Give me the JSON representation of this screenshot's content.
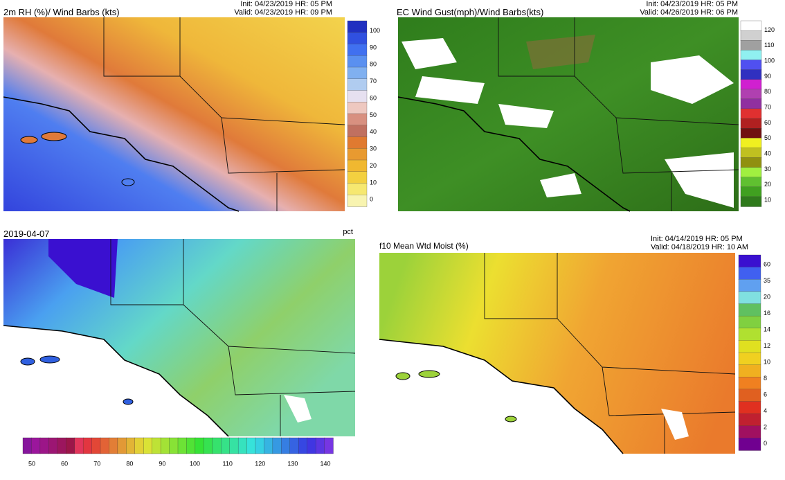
{
  "panels": [
    {
      "title": "2m RH (%)/ Wind Barbs (kts)",
      "init": "Init: 04/23/2019 HR: 05 PM",
      "valid": "Valid: 04/23/2019 HR: 09 PM",
      "colorbar_labels": [
        100,
        90,
        80,
        70,
        60,
        50,
        40,
        30,
        20,
        10,
        0
      ]
    },
    {
      "title": "EC Wind Gust(mph)/Wind Barbs(kts)",
      "init": "Init: 04/23/2019 HR: 05 PM",
      "valid": "Valid: 04/26/2019 HR: 06 PM",
      "colorbar_labels": [
        120,
        110,
        100,
        90,
        80,
        70,
        60,
        50,
        40,
        30,
        20,
        10
      ]
    },
    {
      "title": "2019-04-07",
      "units": "pct",
      "colorbar_labels": [
        50,
        60,
        70,
        80,
        90,
        100,
        110,
        120,
        130,
        140
      ]
    },
    {
      "title": "f10 Mean Wtd Moist (%)",
      "init": "Init: 04/14/2019 HR: 05 PM",
      "valid": "Valid: 04/18/2019 HR: 10 AM",
      "colorbar_labels": [
        60,
        35,
        20,
        16,
        14,
        12,
        10,
        8,
        6,
        4,
        2,
        0
      ]
    }
  ]
}
